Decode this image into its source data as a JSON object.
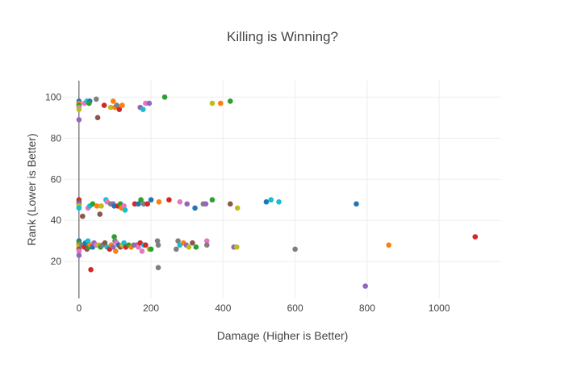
{
  "chart_data": {
    "type": "scatter",
    "title": "Killing is Winning?",
    "xlabel": "Damage (Higher is Better)",
    "ylabel": "Rank (Lower is Better)",
    "xlim": [
      -40,
      1170
    ],
    "ylim": [
      2,
      108
    ],
    "xticks": [
      0,
      200,
      400,
      600,
      800,
      1000
    ],
    "yticks": [
      20,
      40,
      60,
      80,
      100
    ],
    "grid": true,
    "legend": "none",
    "colors": [
      "#1f77b4",
      "#ff7f0e",
      "#2ca02c",
      "#d62728",
      "#9467bd",
      "#8c564b",
      "#e377c2",
      "#7f7f7f",
      "#bcbd22",
      "#17becf"
    ],
    "points": [
      {
        "x": 0,
        "y": 98,
        "c": 0
      },
      {
        "x": 0,
        "y": 97,
        "c": 1
      },
      {
        "x": 0,
        "y": 96,
        "c": 2
      },
      {
        "x": 0,
        "y": 95,
        "c": 6
      },
      {
        "x": 0,
        "y": 94,
        "c": 8
      },
      {
        "x": 0,
        "y": 89,
        "c": 4
      },
      {
        "x": 15,
        "y": 97,
        "c": 6
      },
      {
        "x": 22,
        "y": 98,
        "c": 9
      },
      {
        "x": 30,
        "y": 98,
        "c": 0
      },
      {
        "x": 28,
        "y": 97,
        "c": 2
      },
      {
        "x": 48,
        "y": 99,
        "c": 7
      },
      {
        "x": 52,
        "y": 90,
        "c": 5
      },
      {
        "x": 70,
        "y": 96,
        "c": 3
      },
      {
        "x": 88,
        "y": 95,
        "c": 8
      },
      {
        "x": 95,
        "y": 98,
        "c": 1
      },
      {
        "x": 100,
        "y": 95,
        "c": 1
      },
      {
        "x": 105,
        "y": 96,
        "c": 7
      },
      {
        "x": 112,
        "y": 94,
        "c": 3
      },
      {
        "x": 120,
        "y": 96,
        "c": 1
      },
      {
        "x": 170,
        "y": 95,
        "c": 4
      },
      {
        "x": 178,
        "y": 94,
        "c": 9
      },
      {
        "x": 185,
        "y": 97,
        "c": 6
      },
      {
        "x": 195,
        "y": 97,
        "c": 4
      },
      {
        "x": 238,
        "y": 100,
        "c": 2
      },
      {
        "x": 370,
        "y": 97,
        "c": 8
      },
      {
        "x": 393,
        "y": 97,
        "c": 1
      },
      {
        "x": 420,
        "y": 98,
        "c": 2
      },
      {
        "x": 0,
        "y": 50,
        "c": 3
      },
      {
        "x": 0,
        "y": 49,
        "c": 5
      },
      {
        "x": 0,
        "y": 48,
        "c": 4
      },
      {
        "x": 0,
        "y": 47,
        "c": 8
      },
      {
        "x": 0,
        "y": 46,
        "c": 9
      },
      {
        "x": 10,
        "y": 42,
        "c": 5
      },
      {
        "x": 25,
        "y": 46,
        "c": 6
      },
      {
        "x": 30,
        "y": 47,
        "c": 9
      },
      {
        "x": 38,
        "y": 48,
        "c": 2
      },
      {
        "x": 50,
        "y": 47,
        "c": 1
      },
      {
        "x": 58,
        "y": 43,
        "c": 5
      },
      {
        "x": 62,
        "y": 47,
        "c": 8
      },
      {
        "x": 75,
        "y": 50,
        "c": 9
      },
      {
        "x": 78,
        "y": 49,
        "c": 6
      },
      {
        "x": 88,
        "y": 48,
        "c": 7
      },
      {
        "x": 95,
        "y": 48,
        "c": 4
      },
      {
        "x": 98,
        "y": 47,
        "c": 0
      },
      {
        "x": 108,
        "y": 47,
        "c": 3
      },
      {
        "x": 115,
        "y": 48,
        "c": 2
      },
      {
        "x": 118,
        "y": 46,
        "c": 1
      },
      {
        "x": 125,
        "y": 47,
        "c": 6
      },
      {
        "x": 128,
        "y": 45,
        "c": 9
      },
      {
        "x": 155,
        "y": 48,
        "c": 3
      },
      {
        "x": 165,
        "y": 48,
        "c": 0
      },
      {
        "x": 172,
        "y": 50,
        "c": 2
      },
      {
        "x": 180,
        "y": 48,
        "c": 7
      },
      {
        "x": 190,
        "y": 48,
        "c": 3
      },
      {
        "x": 200,
        "y": 50,
        "c": 0
      },
      {
        "x": 222,
        "y": 49,
        "c": 1
      },
      {
        "x": 250,
        "y": 50,
        "c": 3
      },
      {
        "x": 280,
        "y": 49,
        "c": 6
      },
      {
        "x": 300,
        "y": 48,
        "c": 4
      },
      {
        "x": 322,
        "y": 46,
        "c": 0
      },
      {
        "x": 345,
        "y": 48,
        "c": 7
      },
      {
        "x": 352,
        "y": 48,
        "c": 4
      },
      {
        "x": 370,
        "y": 50,
        "c": 2
      },
      {
        "x": 420,
        "y": 48,
        "c": 5
      },
      {
        "x": 440,
        "y": 46,
        "c": 8
      },
      {
        "x": 520,
        "y": 49,
        "c": 0
      },
      {
        "x": 533,
        "y": 50,
        "c": 9
      },
      {
        "x": 555,
        "y": 49,
        "c": 9
      },
      {
        "x": 770,
        "y": 48,
        "c": 0
      },
      {
        "x": 0,
        "y": 30,
        "c": 0
      },
      {
        "x": 0,
        "y": 29,
        "c": 2
      },
      {
        "x": 0,
        "y": 28,
        "c": 1
      },
      {
        "x": 0,
        "y": 27,
        "c": 8
      },
      {
        "x": 0,
        "y": 26,
        "c": 5
      },
      {
        "x": 0,
        "y": 25,
        "c": 6
      },
      {
        "x": 0,
        "y": 23,
        "c": 4
      },
      {
        "x": 8,
        "y": 28,
        "c": 7
      },
      {
        "x": 15,
        "y": 27,
        "c": 3
      },
      {
        "x": 18,
        "y": 29,
        "c": 0
      },
      {
        "x": 22,
        "y": 26,
        "c": 5
      },
      {
        "x": 25,
        "y": 30,
        "c": 9
      },
      {
        "x": 28,
        "y": 27,
        "c": 2
      },
      {
        "x": 32,
        "y": 28,
        "c": 1
      },
      {
        "x": 33,
        "y": 16,
        "c": 3
      },
      {
        "x": 38,
        "y": 27,
        "c": 0
      },
      {
        "x": 42,
        "y": 29,
        "c": 4
      },
      {
        "x": 48,
        "y": 28,
        "c": 6
      },
      {
        "x": 55,
        "y": 28,
        "c": 8
      },
      {
        "x": 60,
        "y": 27,
        "c": 2
      },
      {
        "x": 65,
        "y": 28,
        "c": 7
      },
      {
        "x": 72,
        "y": 29,
        "c": 5
      },
      {
        "x": 78,
        "y": 27,
        "c": 9
      },
      {
        "x": 85,
        "y": 26,
        "c": 3
      },
      {
        "x": 90,
        "y": 28,
        "c": 1
      },
      {
        "x": 95,
        "y": 27,
        "c": 4
      },
      {
        "x": 98,
        "y": 32,
        "c": 2
      },
      {
        "x": 100,
        "y": 30,
        "c": 7
      },
      {
        "x": 102,
        "y": 25,
        "c": 1
      },
      {
        "x": 105,
        "y": 29,
        "c": 6
      },
      {
        "x": 110,
        "y": 28,
        "c": 0
      },
      {
        "x": 115,
        "y": 27,
        "c": 5
      },
      {
        "x": 120,
        "y": 28,
        "c": 8
      },
      {
        "x": 125,
        "y": 29,
        "c": 9
      },
      {
        "x": 130,
        "y": 27,
        "c": 3
      },
      {
        "x": 138,
        "y": 28,
        "c": 2
      },
      {
        "x": 145,
        "y": 27,
        "c": 1
      },
      {
        "x": 152,
        "y": 28,
        "c": 7
      },
      {
        "x": 160,
        "y": 28,
        "c": 4
      },
      {
        "x": 165,
        "y": 27,
        "c": 6
      },
      {
        "x": 170,
        "y": 29,
        "c": 3
      },
      {
        "x": 175,
        "y": 25,
        "c": 6
      },
      {
        "x": 180,
        "y": 28,
        "c": 9
      },
      {
        "x": 185,
        "y": 28,
        "c": 3
      },
      {
        "x": 195,
        "y": 26,
        "c": 8
      },
      {
        "x": 200,
        "y": 26,
        "c": 2
      },
      {
        "x": 218,
        "y": 30,
        "c": 7
      },
      {
        "x": 220,
        "y": 28,
        "c": 7
      },
      {
        "x": 220,
        "y": 17,
        "c": 7
      },
      {
        "x": 270,
        "y": 26,
        "c": 7
      },
      {
        "x": 275,
        "y": 30,
        "c": 7
      },
      {
        "x": 280,
        "y": 28,
        "c": 9
      },
      {
        "x": 290,
        "y": 29,
        "c": 1
      },
      {
        "x": 298,
        "y": 28,
        "c": 4
      },
      {
        "x": 305,
        "y": 27,
        "c": 8
      },
      {
        "x": 315,
        "y": 29,
        "c": 5
      },
      {
        "x": 325,
        "y": 27,
        "c": 2
      },
      {
        "x": 355,
        "y": 30,
        "c": 6
      },
      {
        "x": 355,
        "y": 28,
        "c": 7
      },
      {
        "x": 430,
        "y": 27,
        "c": 4
      },
      {
        "x": 438,
        "y": 27,
        "c": 8
      },
      {
        "x": 600,
        "y": 26,
        "c": 7
      },
      {
        "x": 795,
        "y": 8,
        "c": 4
      },
      {
        "x": 860,
        "y": 28,
        "c": 1
      },
      {
        "x": 1100,
        "y": 32,
        "c": 3
      }
    ]
  }
}
